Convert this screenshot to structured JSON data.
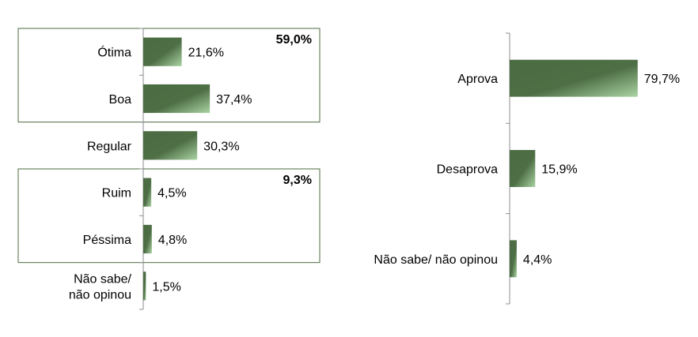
{
  "chart_data": [
    {
      "type": "bar",
      "orientation": "horizontal",
      "categories": [
        "Ótima",
        "Boa",
        "Regular",
        "Ruim",
        "Péssima",
        "Não sabe/ não opinou"
      ],
      "values": [
        21.6,
        37.4,
        30.3,
        4.5,
        4.8,
        1.5
      ],
      "value_labels": [
        "21,6%",
        "37,4%",
        "30,3%",
        "4,5%",
        "4,8%",
        "1,5%"
      ],
      "xlim": [
        0,
        100
      ],
      "groups": [
        {
          "members": [
            "Ótima",
            "Boa"
          ],
          "total_label": "59,0%"
        },
        {
          "members": [
            "Ruim",
            "Péssima"
          ],
          "total_label": "9,3%"
        }
      ],
      "bar_color": "#4b6b42",
      "bar_highlight": "#a9d3a3",
      "grid": false,
      "legend": "none"
    },
    {
      "type": "bar",
      "orientation": "horizontal",
      "categories": [
        "Aprova",
        "Desaprova",
        "Não sabe/ não opinou"
      ],
      "values": [
        79.7,
        15.9,
        4.4
      ],
      "value_labels": [
        "79,7%",
        "15,9%",
        "4,4%"
      ],
      "xlim": [
        0,
        100
      ],
      "bar_color": "#4b6b42",
      "bar_highlight": "#a9d3a3",
      "grid": false,
      "legend": "none"
    }
  ]
}
